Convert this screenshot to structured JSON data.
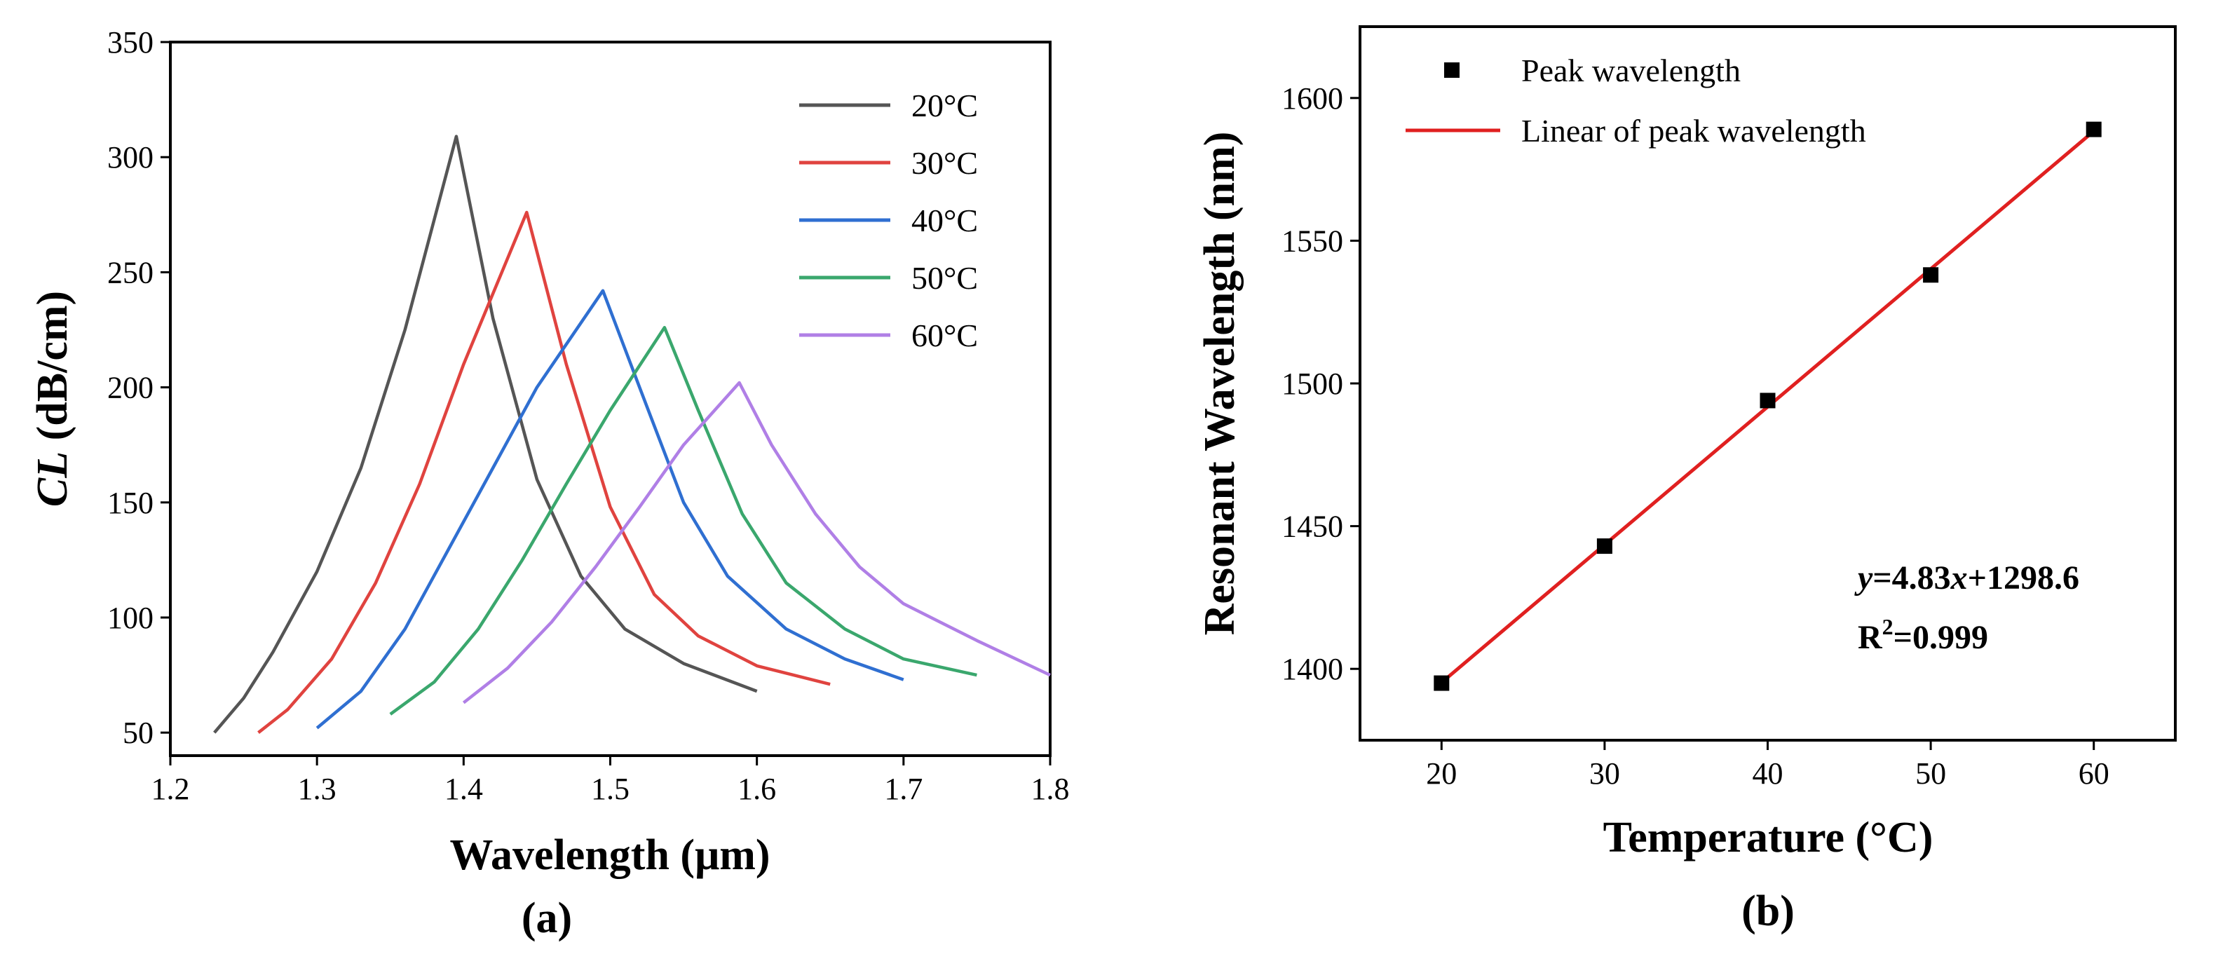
{
  "chart_data": [
    {
      "type": "line",
      "panel_label": "(a)",
      "xlabel": "Wavelength (μm)",
      "ylabel_italic": "CL",
      "ylabel_rest": " (dB/cm)",
      "xlim": [
        1.2,
        1.8
      ],
      "ylim": [
        40,
        350
      ],
      "xticks": [
        1.2,
        1.3,
        1.4,
        1.5,
        1.6,
        1.7,
        1.8
      ],
      "xtick_labels": [
        "1.2",
        "1.3",
        "1.4",
        "1.5",
        "1.6",
        "1.7",
        "1.8"
      ],
      "yticks": [
        50,
        100,
        150,
        200,
        250,
        300,
        350
      ],
      "ytick_labels": [
        "50",
        "100",
        "150",
        "200",
        "250",
        "300",
        "350"
      ],
      "legend_position": "top-right",
      "series": [
        {
          "name": "20°C",
          "color": "#555555",
          "x": [
            1.23,
            1.25,
            1.27,
            1.3,
            1.33,
            1.36,
            1.395,
            1.42,
            1.45,
            1.48,
            1.51,
            1.55,
            1.6
          ],
          "y": [
            50,
            65,
            85,
            120,
            165,
            225,
            309,
            230,
            160,
            118,
            95,
            80,
            68
          ]
        },
        {
          "name": "30°C",
          "color": "#e0433f",
          "x": [
            1.26,
            1.28,
            1.31,
            1.34,
            1.37,
            1.4,
            1.443,
            1.47,
            1.5,
            1.53,
            1.56,
            1.6,
            1.65
          ],
          "y": [
            50,
            60,
            82,
            115,
            158,
            210,
            276,
            210,
            148,
            110,
            92,
            79,
            71
          ]
        },
        {
          "name": "40°C",
          "color": "#2f6fd1",
          "x": [
            1.3,
            1.33,
            1.36,
            1.39,
            1.42,
            1.45,
            1.495,
            1.52,
            1.55,
            1.58,
            1.62,
            1.66,
            1.7
          ],
          "y": [
            52,
            68,
            95,
            130,
            165,
            200,
            242,
            200,
            150,
            118,
            95,
            82,
            73
          ]
        },
        {
          "name": "50°C",
          "color": "#3aa76d",
          "x": [
            1.35,
            1.38,
            1.41,
            1.44,
            1.47,
            1.5,
            1.537,
            1.56,
            1.59,
            1.62,
            1.66,
            1.7,
            1.75
          ],
          "y": [
            58,
            72,
            95,
            125,
            158,
            190,
            226,
            190,
            145,
            115,
            95,
            82,
            75
          ]
        },
        {
          "name": "60°C",
          "color": "#b07fe6",
          "x": [
            1.4,
            1.43,
            1.46,
            1.49,
            1.52,
            1.55,
            1.588,
            1.61,
            1.64,
            1.67,
            1.7,
            1.75,
            1.8
          ],
          "y": [
            63,
            78,
            98,
            122,
            148,
            175,
            202,
            175,
            145,
            122,
            106,
            90,
            75
          ]
        }
      ]
    },
    {
      "type": "scatter",
      "panel_label": "(b)",
      "xlabel": "Temperature (°C)",
      "ylabel": "Resonant Wavelength (nm)",
      "xlim": [
        15,
        65
      ],
      "ylim": [
        1375,
        1625
      ],
      "xticks": [
        20,
        30,
        40,
        50,
        60
      ],
      "xtick_labels": [
        "20",
        "30",
        "40",
        "50",
        "60"
      ],
      "yticks": [
        1400,
        1450,
        1500,
        1550,
        1600
      ],
      "ytick_labels": [
        "1400",
        "1450",
        "1500",
        "1550",
        "1600"
      ],
      "legend_position": "top-left",
      "series": [
        {
          "name": "Peak wavelength",
          "kind": "points",
          "color": "#000000",
          "x": [
            20,
            30,
            40,
            50,
            60
          ],
          "y": [
            1395,
            1443,
            1494,
            1538,
            1589
          ]
        },
        {
          "name": "Linear of peak wavelength",
          "kind": "fit",
          "color": "#e02020",
          "slope": 4.83,
          "intercept": 1298.6,
          "x_range": [
            20,
            60
          ]
        }
      ],
      "annotations": {
        "equation_y": "y",
        "equation_mid": "=4.83",
        "equation_x": "x",
        "equation_rest": "+1298.6",
        "r2_label": "R",
        "r2_sup": "2",
        "r2_value": "=0.999"
      }
    }
  ]
}
